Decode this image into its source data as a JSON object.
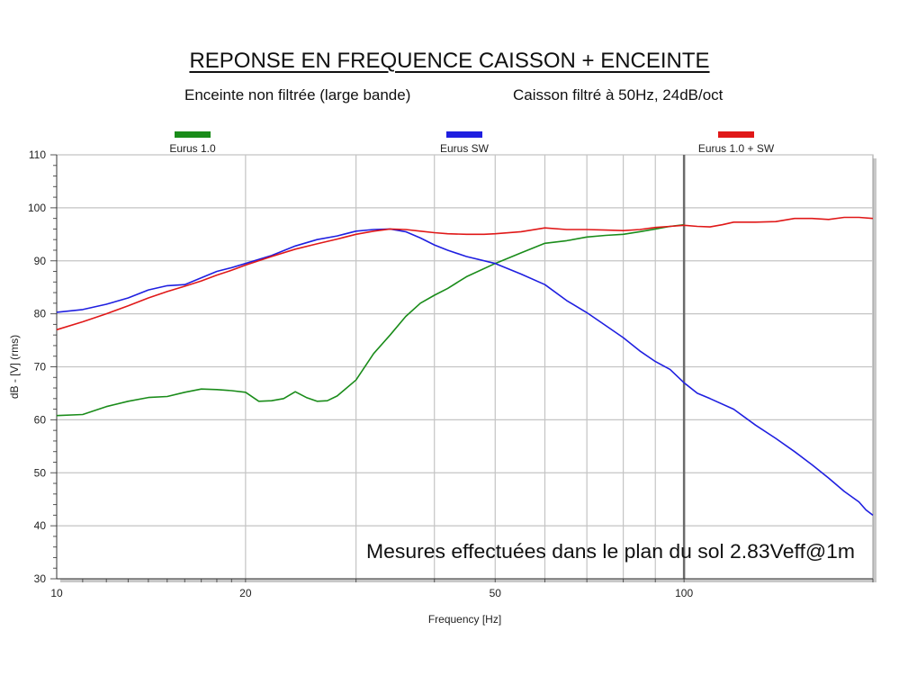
{
  "title": "REPONSE EN FREQUENCE CAISSON + ENCEINTE",
  "subtitle_left": "Enceinte non filtrée (large bande)",
  "subtitle_right": "Caisson filtré à 50Hz, 24dB/oct",
  "annotation": "Mesures effectuées dans le plan du sol 2.83Veff@1m",
  "chart_data": {
    "type": "line",
    "xlabel": "Frequency [Hz]",
    "ylabel": "dB - [V] (rms)",
    "x_scale": "log",
    "xlim": [
      10,
      200
    ],
    "ylim": [
      30,
      110
    ],
    "x_ticks": [
      10,
      20,
      50,
      100
    ],
    "x_gridlines": [
      20,
      30,
      40,
      50,
      60,
      70,
      80,
      90,
      100
    ],
    "y_ticks": [
      30,
      40,
      50,
      60,
      70,
      80,
      90,
      100,
      110
    ],
    "grid": true,
    "legend_position": "top",
    "marker_line_x": 100,
    "series": [
      {
        "name": "Eurus 1.0",
        "color": "#1a8c1a",
        "points": [
          [
            10,
            60.8
          ],
          [
            11,
            61
          ],
          [
            12,
            62.5
          ],
          [
            13,
            63.5
          ],
          [
            14,
            64.2
          ],
          [
            15,
            64.4
          ],
          [
            16,
            65.2
          ],
          [
            17,
            65.8
          ],
          [
            18,
            65.7
          ],
          [
            19,
            65.5
          ],
          [
            20,
            65.2
          ],
          [
            21,
            63.5
          ],
          [
            22,
            63.6
          ],
          [
            23,
            64
          ],
          [
            24,
            65.3
          ],
          [
            25,
            64.2
          ],
          [
            26,
            63.5
          ],
          [
            27,
            63.6
          ],
          [
            28,
            64.5
          ],
          [
            30,
            67.5
          ],
          [
            32,
            72.5
          ],
          [
            34,
            76
          ],
          [
            36,
            79.5
          ],
          [
            38,
            82
          ],
          [
            40,
            83.5
          ],
          [
            42,
            84.8
          ],
          [
            45,
            87
          ],
          [
            50,
            89.5
          ],
          [
            55,
            91.5
          ],
          [
            60,
            93.3
          ],
          [
            65,
            93.8
          ],
          [
            70,
            94.5
          ],
          [
            75,
            94.8
          ],
          [
            80,
            95
          ],
          [
            85,
            95.5
          ],
          [
            90,
            96
          ],
          [
            95,
            96.5
          ],
          [
            100,
            96.8
          ]
        ]
      },
      {
        "name": "Eurus SW",
        "color": "#1f1fe0",
        "points": [
          [
            10,
            80.3
          ],
          [
            11,
            80.8
          ],
          [
            12,
            81.8
          ],
          [
            13,
            83
          ],
          [
            14,
            84.5
          ],
          [
            15,
            85.3
          ],
          [
            16,
            85.5
          ],
          [
            17,
            86.8
          ],
          [
            18,
            88
          ],
          [
            19,
            88.7
          ],
          [
            20,
            89.5
          ],
          [
            22,
            91
          ],
          [
            24,
            92.8
          ],
          [
            26,
            94
          ],
          [
            28,
            94.7
          ],
          [
            30,
            95.6
          ],
          [
            32,
            95.9
          ],
          [
            34,
            96
          ],
          [
            36,
            95.5
          ],
          [
            38,
            94.3
          ],
          [
            40,
            93
          ],
          [
            42,
            92
          ],
          [
            45,
            90.8
          ],
          [
            50,
            89.5
          ],
          [
            55,
            87.5
          ],
          [
            60,
            85.5
          ],
          [
            65,
            82.5
          ],
          [
            70,
            80.2
          ],
          [
            75,
            77.8
          ],
          [
            80,
            75.5
          ],
          [
            85,
            73
          ],
          [
            90,
            71
          ],
          [
            95,
            69.5
          ],
          [
            100,
            67
          ],
          [
            105,
            65
          ],
          [
            110,
            64
          ],
          [
            120,
            62
          ],
          [
            130,
            59
          ],
          [
            140,
            56.5
          ],
          [
            150,
            54
          ],
          [
            160,
            51.5
          ],
          [
            170,
            49
          ],
          [
            180,
            46.5
          ],
          [
            190,
            44.5
          ],
          [
            195,
            43
          ],
          [
            200,
            42
          ]
        ]
      },
      {
        "name": "Eurus 1.0 + SW",
        "color": "#e01818",
        "points": [
          [
            10,
            77
          ],
          [
            11,
            78.5
          ],
          [
            12,
            80
          ],
          [
            13,
            81.5
          ],
          [
            14,
            83
          ],
          [
            15,
            84.2
          ],
          [
            16,
            85.2
          ],
          [
            17,
            86.2
          ],
          [
            18,
            87.3
          ],
          [
            19,
            88.2
          ],
          [
            20,
            89.2
          ],
          [
            22,
            90.8
          ],
          [
            24,
            92.2
          ],
          [
            26,
            93.2
          ],
          [
            28,
            94.1
          ],
          [
            30,
            95
          ],
          [
            32,
            95.6
          ],
          [
            34,
            96
          ],
          [
            36,
            95.9
          ],
          [
            38,
            95.6
          ],
          [
            40,
            95.3
          ],
          [
            42,
            95.1
          ],
          [
            45,
            95
          ],
          [
            48,
            95
          ],
          [
            50,
            95.1
          ],
          [
            55,
            95.5
          ],
          [
            60,
            96.2
          ],
          [
            65,
            95.9
          ],
          [
            70,
            95.9
          ],
          [
            75,
            95.8
          ],
          [
            80,
            95.7
          ],
          [
            85,
            95.9
          ],
          [
            90,
            96.3
          ],
          [
            95,
            96.5
          ],
          [
            100,
            96.7
          ],
          [
            105,
            96.5
          ],
          [
            110,
            96.4
          ],
          [
            115,
            96.8
          ],
          [
            120,
            97.3
          ],
          [
            130,
            97.3
          ],
          [
            140,
            97.4
          ],
          [
            150,
            98
          ],
          [
            160,
            98
          ],
          [
            170,
            97.8
          ],
          [
            180,
            98.2
          ],
          [
            190,
            98.2
          ],
          [
            200,
            98
          ]
        ]
      }
    ]
  }
}
